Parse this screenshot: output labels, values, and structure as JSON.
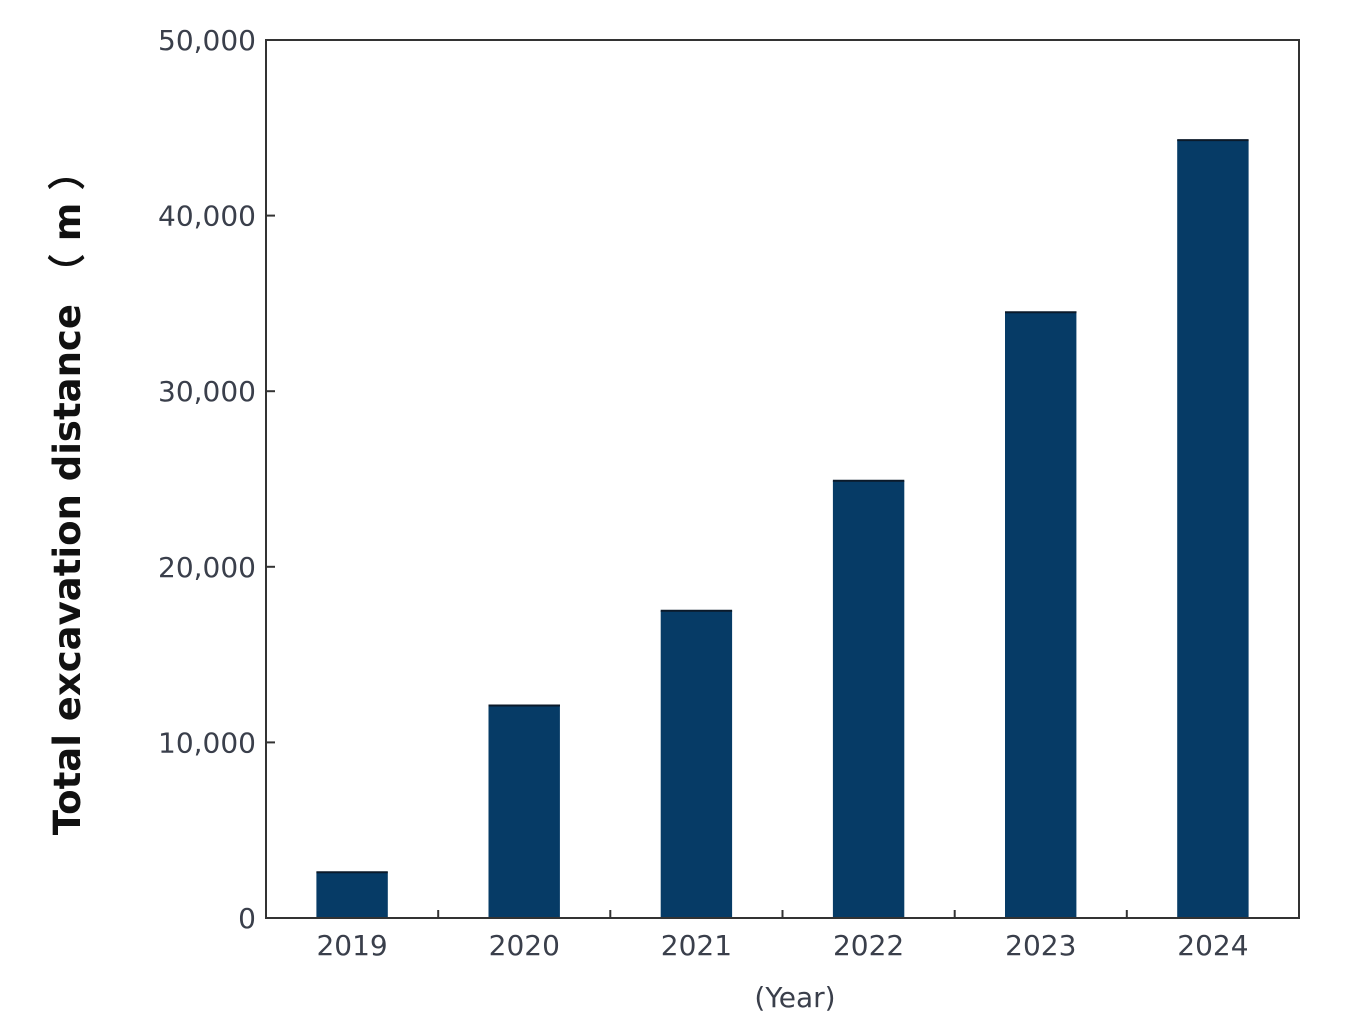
{
  "chart_data": {
    "type": "bar",
    "title": "",
    "xlabel": "(Year)",
    "ylabel": "Total excavation distance （ m ）",
    "categories": [
      "2019",
      "2020",
      "2021",
      "2022",
      "2023",
      "2024"
    ],
    "series": [
      {
        "values": [
          2600,
          12100,
          17500,
          24900,
          34500,
          44300
        ]
      }
    ],
    "ylim": [
      0,
      50000
    ],
    "yticks": [
      0,
      10000,
      20000,
      30000,
      40000,
      50000
    ],
    "ytick_labels": [
      "0",
      "10,000",
      "20,000",
      "30,000",
      "40,000",
      "50,000"
    ],
    "grid": false,
    "legend": "none",
    "colors": {
      "bar": "#063b66",
      "axis": "#333333",
      "tick_text": "#3a3f4b",
      "title_text": "#111111"
    }
  }
}
